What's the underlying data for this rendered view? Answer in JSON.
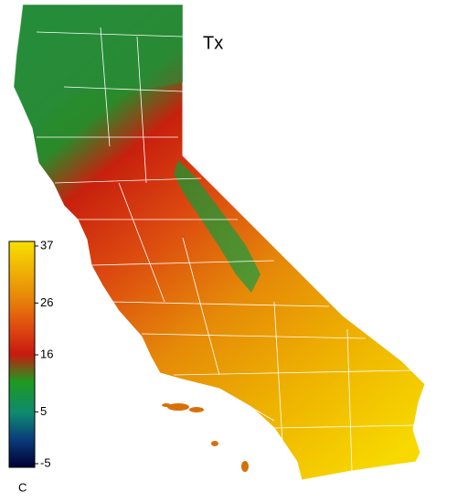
{
  "map": {
    "title": "Tx",
    "unit": "C",
    "colorbar": {
      "range": [
        -5,
        37
      ],
      "ticks": [
        -5,
        5,
        16,
        26,
        37
      ]
    }
  }
}
